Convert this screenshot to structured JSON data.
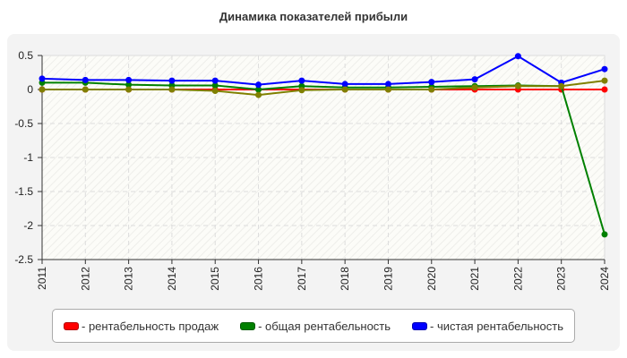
{
  "chart_data": {
    "type": "line",
    "title": "Динамика показателей прибыли",
    "xlabel": "",
    "ylabel": "",
    "x": [
      "2011",
      "2012",
      "2013",
      "2014",
      "2015",
      "2016",
      "2017",
      "2018",
      "2019",
      "2020",
      "2021",
      "2022",
      "2023",
      "2024"
    ],
    "ylim": [
      -2.5,
      0.5
    ],
    "yticks": [
      "0.5",
      "0",
      "-0.5",
      "-1",
      "-1.5",
      "-2",
      "-2.5"
    ],
    "ytick_values": [
      0.5,
      0,
      -0.5,
      -1,
      -1.5,
      -2,
      -2.5
    ],
    "grid": true,
    "legend_placement": "bottom",
    "series": [
      {
        "name": "- рентабельность продаж",
        "color": "#ff0000",
        "values": [
          0,
          0,
          0,
          0,
          0,
          0,
          0,
          0,
          0,
          0,
          0,
          0,
          0,
          0
        ]
      },
      {
        "name": "- общая рентабельность",
        "color": "#008000",
        "values": [
          0.1,
          0.1,
          0.07,
          0.06,
          0.06,
          0.0,
          0.05,
          0.03,
          0.03,
          0.04,
          0.05,
          0.06,
          0.05,
          -2.13
        ]
      },
      {
        "name": "- чистая рентабельность",
        "color": "#0000ff",
        "values": [
          0.16,
          0.14,
          0.14,
          0.13,
          0.13,
          0.07,
          0.13,
          0.08,
          0.08,
          0.11,
          0.15,
          0.49,
          0.1,
          0.3
        ]
      },
      {
        "name": "",
        "color": "#808000",
        "values": [
          0,
          0,
          0,
          0,
          -0.02,
          -0.08,
          -0.01,
          0,
          0,
          0,
          0.03,
          0.05,
          0.05,
          0.13
        ]
      }
    ]
  }
}
